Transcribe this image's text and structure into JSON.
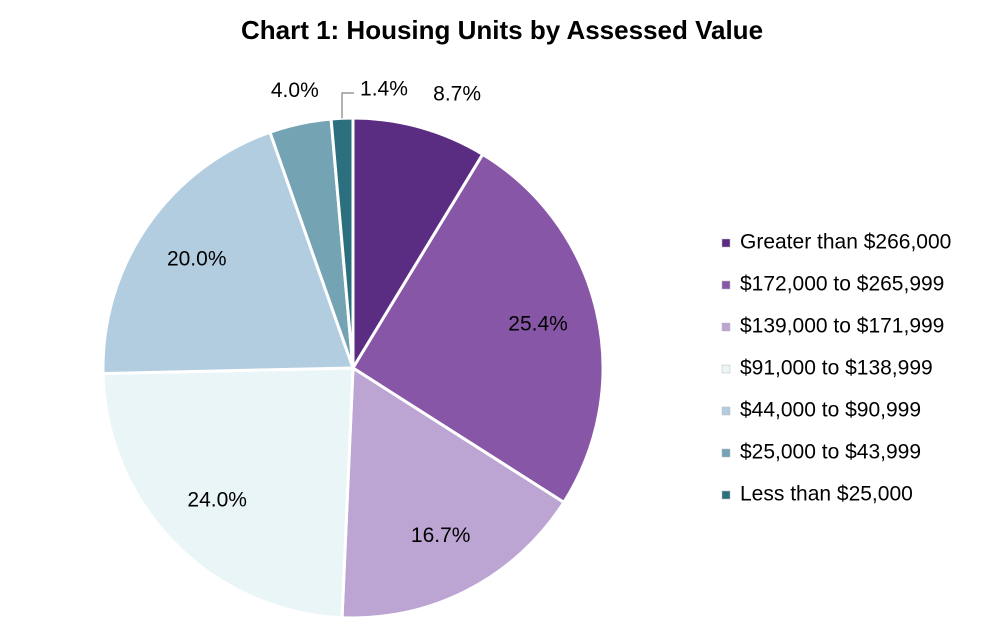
{
  "chart_data": {
    "type": "pie",
    "title": "Chart 1: Housing Units by Assessed Value",
    "categories": [
      "Greater than $266,000",
      "$172,000 to $265,999",
      "$139,000 to $171,999",
      "$91,000 to $138,999",
      "$44,000 to $90,999",
      "$25,000 to $43,999",
      "Less than $25,000"
    ],
    "values": [
      8.7,
      25.4,
      16.7,
      24.0,
      20.0,
      4.0,
      1.4
    ],
    "value_labels": [
      "8.7%",
      "25.4%",
      "16.7%",
      "24.0%",
      "20.0%",
      "4.0%",
      "1.4%"
    ],
    "colors": [
      "#5b2d82",
      "#8856a7",
      "#bca5d3",
      "#eaf5f8",
      "#b3cde0",
      "#74a3b3",
      "#2c7080"
    ],
    "legend": "right"
  }
}
